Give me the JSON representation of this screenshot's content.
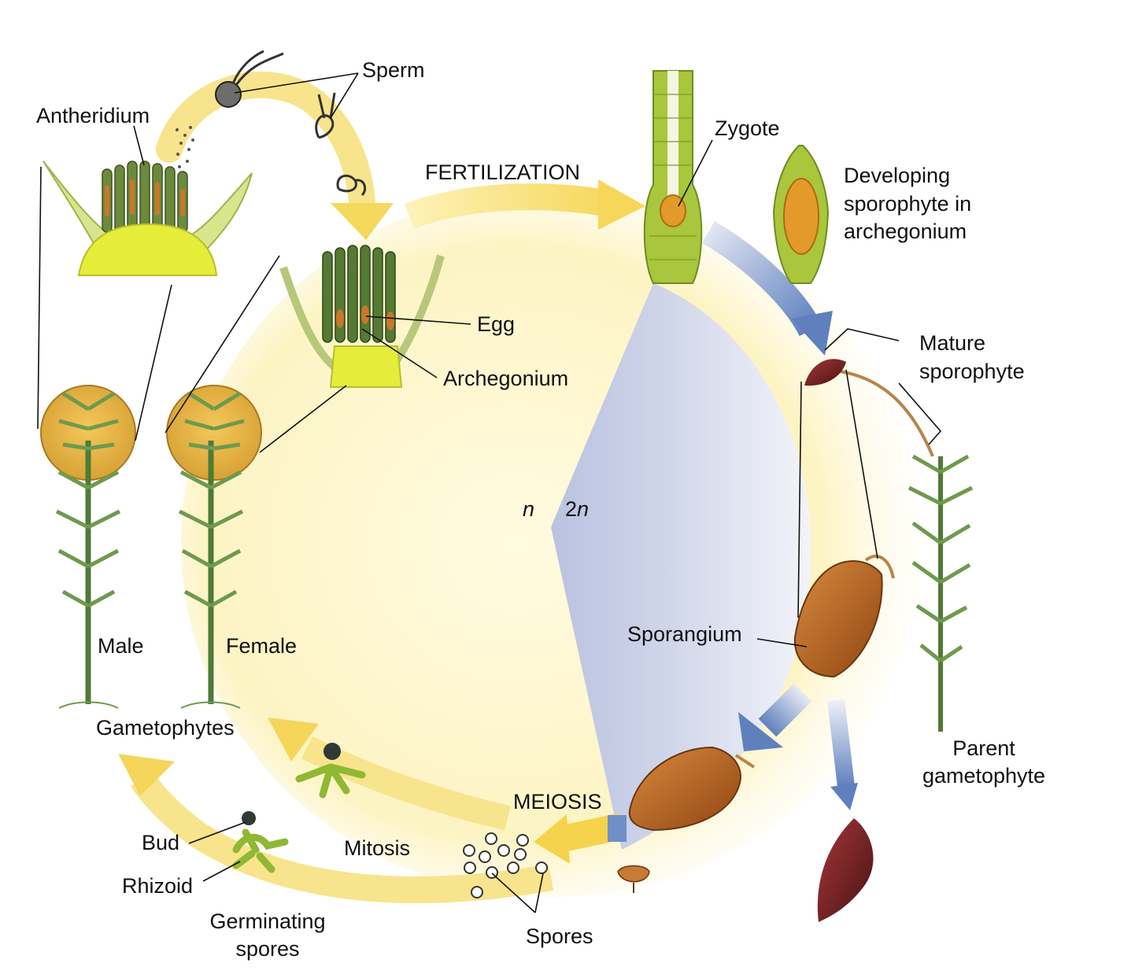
{
  "labels": {
    "sperm": "Sperm",
    "antheridium": "Antheridium",
    "fertilization": "FERTILIZATION",
    "zygote": "Zygote",
    "developing_sporophyte": [
      "Developing",
      "sporophyte in",
      "archegonium"
    ],
    "egg": "Egg",
    "archegonium": "Archegonium",
    "mature_sporophyte": [
      "Mature",
      "sporophyte"
    ],
    "ploidy_n": "n",
    "ploidy_2n_digit": "2",
    "ploidy_2n_letter": "n",
    "male": "Male",
    "female": "Female",
    "sporangium": "Sporangium",
    "gametophytes": "Gametophytes",
    "parent_gametophyte": [
      "Parent",
      "gametophyte"
    ],
    "meiosis": "MEIOSIS",
    "bud": "Bud",
    "mitosis": "Mitosis",
    "rhizoid": "Rhizoid",
    "germinating_spores": [
      "Germinating",
      "spores"
    ],
    "spores": "Spores"
  },
  "colors": {
    "haploid_region": "#fdf6c8",
    "diploid_region": "#c9d0e6",
    "haploid_arrow": "#f6dd6a",
    "diploid_arrow": "#6f8fc6",
    "plant_green": "#5a8a3a",
    "sporangium_brown": "#b8621f",
    "capsule_dark": "#6e1e1e"
  }
}
